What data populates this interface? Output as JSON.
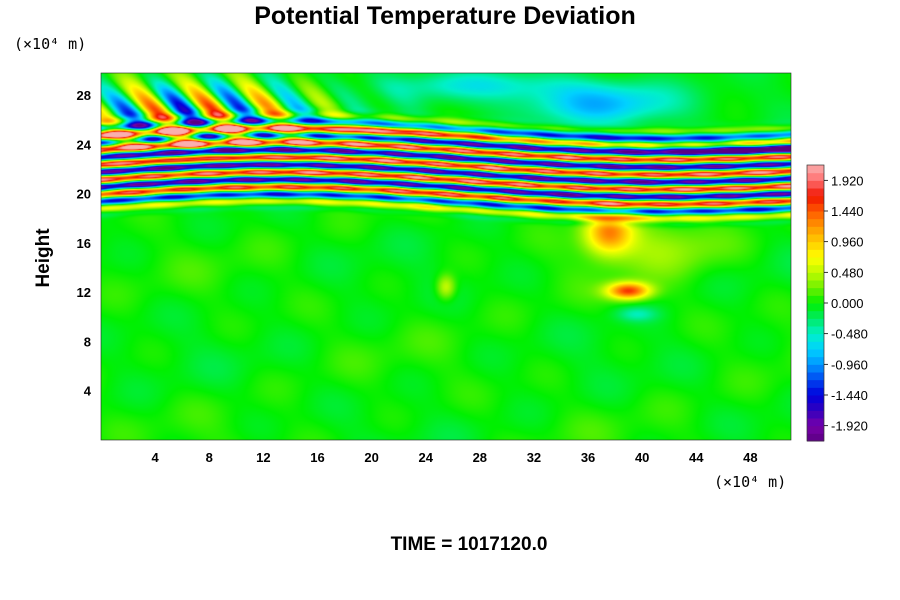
{
  "chart_data": {
    "type": "heatmap",
    "title": "Potential Temperature Deviation",
    "ylabel": "Height",
    "yunit": "(×10⁴ m)",
    "xunit": "(×10⁴ m)",
    "xlim": [
      0,
      51
    ],
    "ylim": [
      0,
      29.8
    ],
    "xticks": [
      "4",
      "8",
      "12",
      "16",
      "20",
      "24",
      "28",
      "32",
      "36",
      "40",
      "44",
      "48"
    ],
    "yticks": [
      "4",
      "8",
      "12",
      "16",
      "20",
      "24",
      "28"
    ],
    "colorbar": {
      "range": [
        -2.16,
        2.16
      ],
      "ticks": [
        "1.920",
        "1.440",
        "0.960",
        "0.480",
        "0.000",
        "-0.480",
        "-0.960",
        "-1.440",
        "-1.920"
      ],
      "colormap": "rainbow (purple → blue → cyan → green → yellow → red → pink)"
    },
    "features": [
      {
        "region": "x 0–51, y 0–17",
        "value_range": [
          -0.2,
          0.2
        ]
      },
      {
        "region": "x 0–51, y 19–25",
        "description": "horizontal alternating layers",
        "value_range": [
          -1.92,
          1.92
        ]
      },
      {
        "region": "x 0–18, y 24–30",
        "description": "tilted wave pattern",
        "value_range": [
          -1.44,
          1.44
        ]
      },
      {
        "region": "x 30–45, y 25–30",
        "description": "negative anomaly",
        "value_range": [
          -1.2,
          -0.4
        ]
      },
      {
        "region": "x 35–42, y 14–19",
        "description": "positive plume",
        "value_range": [
          0.5,
          1.5
        ]
      },
      {
        "region": "x 37–41, y 11–13",
        "description": "positive blob",
        "value_range": [
          0.6,
          1.7
        ]
      }
    ]
  },
  "footer": {
    "time": "TIME = 1017120.0"
  }
}
